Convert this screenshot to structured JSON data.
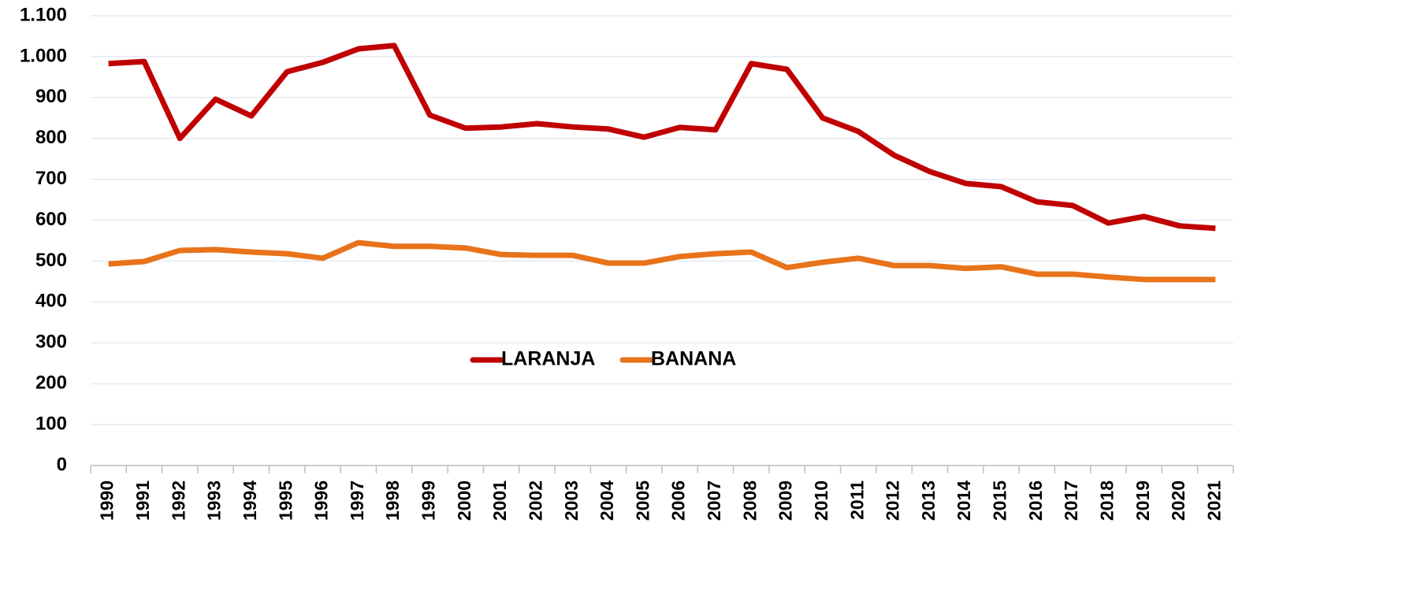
{
  "chart_data": {
    "type": "line",
    "categories": [
      "1990",
      "1991",
      "1992",
      "1993",
      "1994",
      "1995",
      "1996",
      "1997",
      "1998",
      "1999",
      "2000",
      "2001",
      "2002",
      "2003",
      "2004",
      "2005",
      "2006",
      "2007",
      "2008",
      "2009",
      "2010",
      "2011",
      "2012",
      "2013",
      "2014",
      "2015",
      "2016",
      "2017",
      "2018",
      "2019",
      "2020",
      "2021"
    ],
    "series": [
      {
        "name": "LARANJA",
        "color": "#c00000",
        "values": [
          983,
          988,
          800,
          896,
          855,
          963,
          986,
          1019,
          1027,
          857,
          825,
          828,
          836,
          828,
          823,
          803,
          827,
          821,
          983,
          969,
          850,
          817,
          759,
          719,
          690,
          682,
          645,
          636,
          593,
          609,
          586,
          580
        ]
      },
      {
        "name": "BANANA",
        "color": "#e8731a",
        "values": [
          493,
          499,
          526,
          528,
          522,
          518,
          507,
          545,
          536,
          536,
          532,
          516,
          514,
          514,
          495,
          495,
          511,
          518,
          522,
          484,
          497,
          507,
          489,
          489,
          482,
          486,
          468,
          468,
          461,
          455,
          455,
          455
        ]
      }
    ],
    "ylim": [
      0,
      1100
    ],
    "yticks": [
      0,
      100,
      200,
      300,
      400,
      500,
      600,
      700,
      800,
      900,
      {
        "value": 1000,
        "label": "1.000"
      },
      {
        "value": 1100,
        "label": "1.100"
      }
    ],
    "grid": true,
    "legend": "center"
  }
}
